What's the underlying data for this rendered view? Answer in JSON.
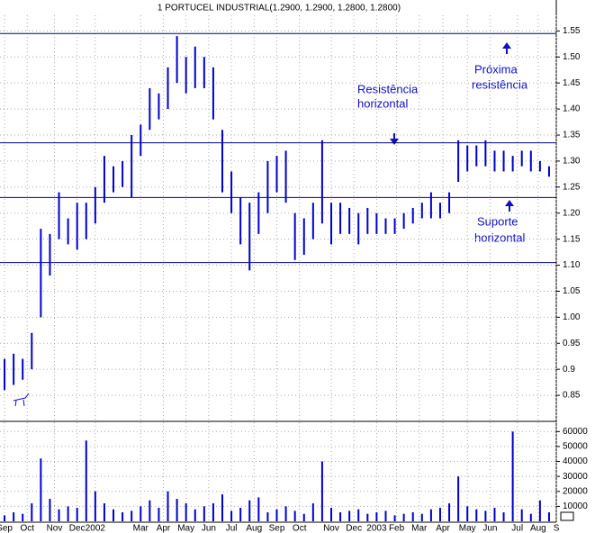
{
  "chart_data": {
    "type": "ohlc",
    "title": "1 PORTUCEL INDUSTRIAL(1.2900, 1.2900, 1.2800, 1.2800)",
    "categories": [
      null,
      null,
      null,
      null,
      null,
      null,
      null,
      null,
      null,
      null,
      null,
      null,
      null,
      null,
      null,
      null,
      null,
      null,
      null,
      null,
      null,
      null,
      null,
      null,
      null,
      null,
      null,
      null,
      null,
      null,
      null,
      null,
      null,
      null,
      null,
      null,
      null,
      null,
      null,
      null,
      null,
      null,
      null,
      null,
      null,
      null,
      null,
      null,
      null,
      null,
      null,
      null,
      null,
      null,
      null,
      null,
      null,
      null,
      null,
      null,
      null
    ],
    "high": [
      0.92,
      0.93,
      0.92,
      0.97,
      1.17,
      1.16,
      1.24,
      1.19,
      1.22,
      1.22,
      1.25,
      1.31,
      1.29,
      1.3,
      1.35,
      1.37,
      1.44,
      1.43,
      1.48,
      1.54,
      1.5,
      1.52,
      1.5,
      1.48,
      1.36,
      1.28,
      1.23,
      1.22,
      1.24,
      1.3,
      1.31,
      1.32,
      1.2,
      1.19,
      1.22,
      1.34,
      1.22,
      1.22,
      1.21,
      1.2,
      1.21,
      1.2,
      1.19,
      1.19,
      1.2,
      1.21,
      1.22,
      1.24,
      1.22,
      1.24,
      1.34,
      1.33,
      1.33,
      1.34,
      1.32,
      1.32,
      1.31,
      1.32,
      1.32,
      1.3,
      1.29
    ],
    "low": [
      0.86,
      0.87,
      0.88,
      0.9,
      1.0,
      1.08,
      1.15,
      1.14,
      1.13,
      1.15,
      1.18,
      1.22,
      1.24,
      1.25,
      1.23,
      1.31,
      1.36,
      1.38,
      1.4,
      1.45,
      1.43,
      1.44,
      1.44,
      1.38,
      1.24,
      1.2,
      1.14,
      1.09,
      1.16,
      1.2,
      1.24,
      1.22,
      1.11,
      1.12,
      1.15,
      1.18,
      1.14,
      1.16,
      1.16,
      1.14,
      1.16,
      1.16,
      1.16,
      1.16,
      1.17,
      1.18,
      1.19,
      1.19,
      1.19,
      1.2,
      1.26,
      1.28,
      1.29,
      1.29,
      1.28,
      1.28,
      1.28,
      1.29,
      1.28,
      1.28,
      1.27
    ],
    "volume": [
      4000,
      6000,
      5000,
      12000,
      42000,
      15000,
      8000,
      10000,
      9000,
      54000,
      20000,
      12000,
      8000,
      6000,
      7000,
      10000,
      14000,
      9000,
      20000,
      15000,
      12000,
      8000,
      10000,
      12000,
      18000,
      7000,
      9000,
      14000,
      16000,
      6000,
      8000,
      10000,
      7000,
      5000,
      12000,
      40000,
      9000,
      6000,
      7000,
      8000,
      5000,
      6000,
      7000,
      4000,
      5000,
      6000,
      5000,
      8000,
      9000,
      12000,
      30000,
      10000,
      8000,
      7000,
      9000,
      6000,
      60000,
      8000,
      5000,
      14000,
      6000
    ],
    "color": "#0000cc",
    "ylim": [
      0.8,
      1.58
    ],
    "yticks": [
      0.85,
      0.9,
      0.95,
      {
        "value": 1,
        "label": "1.00"
      },
      1.05,
      {
        "value": 1.1,
        "label": "1.10"
      },
      1.15,
      {
        "value": 1.2,
        "label": "1.20"
      },
      1.25,
      {
        "value": 1.3,
        "label": "1.30"
      },
      1.35,
      {
        "value": 1.4,
        "label": "1.40"
      },
      1.45,
      {
        "value": 1.5,
        "label": "1.50"
      },
      1.55
    ],
    "volume_ylim": [
      0,
      65000
    ],
    "volume_yticks": [
      10000,
      20000,
      30000,
      40000,
      50000,
      60000
    ],
    "xticks": [
      {
        "value": 0.5,
        "label": "Sep"
      },
      {
        "value": 3,
        "label": "Oct"
      },
      {
        "value": 6,
        "label": "Nov"
      },
      {
        "value": 8.5,
        "label": "Dec"
      },
      {
        "value": 10.5,
        "label": "2002"
      },
      {
        "value": 15.5,
        "label": "Mar"
      },
      {
        "value": 18,
        "label": "Apr"
      },
      {
        "value": 20.5,
        "label": "May"
      },
      {
        "value": 23,
        "label": "Jun"
      },
      {
        "value": 25.5,
        "label": "Jul"
      },
      {
        "value": 28,
        "label": "Aug"
      },
      {
        "value": 30.5,
        "label": "Sep"
      },
      {
        "value": 33,
        "label": "Oct"
      },
      {
        "value": 36.5,
        "label": "Nov"
      },
      {
        "value": 39,
        "label": "Dec"
      },
      {
        "value": 41.5,
        "label": "2003"
      },
      {
        "value": 43.7,
        "label": "Feb"
      },
      {
        "value": 46.2,
        "label": "Mar"
      },
      {
        "value": 48.8,
        "label": "Apr"
      },
      {
        "value": 51.5,
        "label": "May"
      },
      {
        "value": 54,
        "label": "Jun"
      },
      {
        "value": 57,
        "label": "Jul"
      },
      {
        "value": 59.3,
        "label": "Aug"
      },
      {
        "value": 61.3,
        "label": "S"
      }
    ],
    "hlines": [
      1.545,
      1.335,
      1.23,
      1.105
    ],
    "hline_color": "#000080",
    "grid": true,
    "annotations": [
      "Próxima",
      "resistência",
      "Resistência",
      "horizontal",
      "Suporte",
      "horizontal"
    ]
  }
}
